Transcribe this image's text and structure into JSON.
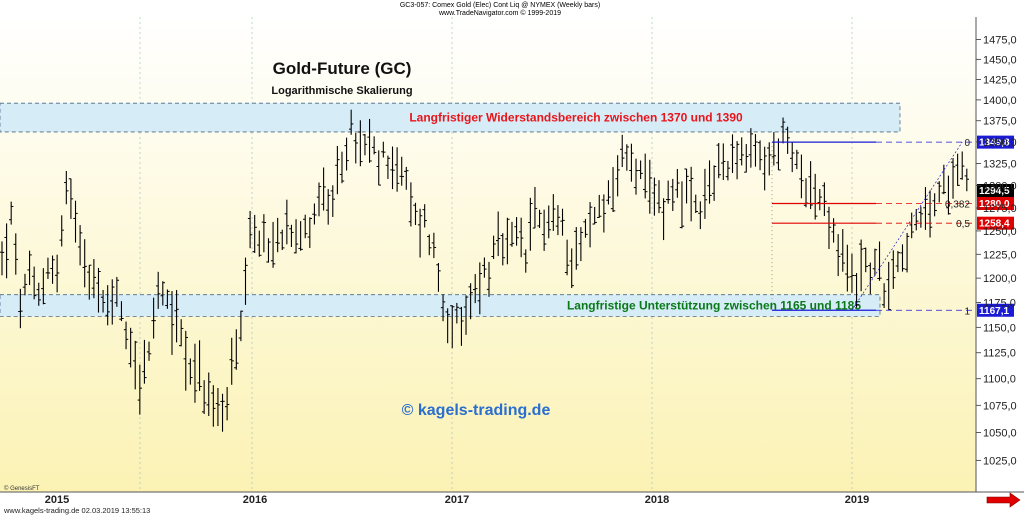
{
  "header": {
    "line1": "GC3-057: Comex Gold (Elec) Cont Liq @ NYMEX  (Weekly bars)",
    "line2": "www.TradeNavigator.com © 1999-2019"
  },
  "footer": {
    "genesis": "© GenesisFT",
    "site_date": "www.kagels-trading.de    02.03.2019 13:55:13"
  },
  "colors": {
    "background_top": "#ffffff",
    "background_bottom": "#fbf2b4",
    "bars": "#000000",
    "resistance_band": "#d6ecf7",
    "resistance_text": "#e8151b",
    "support_text": "#0a7a18",
    "watermark": "#2a6fd0",
    "fib_red": "#e00000",
    "fib_blue": "#1b1bd6",
    "arrow": "#e00000"
  },
  "chart_data": {
    "type": "ohlc",
    "title": "Gold-Future (GC)",
    "subtitle": "Logarithmische Skalierung",
    "watermark": "© kagels-trading.de",
    "y_scale": "log",
    "ylim": [
      1006,
      1495
    ],
    "y_ticks": [
      "1475,0",
      "1450,0",
      "1425,0",
      "1400,0",
      "1375,0",
      "1350,0",
      "1325,0",
      "1300,0",
      "1275,0",
      "1250,0",
      "1225,0",
      "1200,0",
      "1175,0",
      "1150,0",
      "1125,0",
      "1100,0",
      "1075,0",
      "1050,0",
      "1025,0"
    ],
    "y_tick_values": [
      1475,
      1450,
      1425,
      1400,
      1375,
      1350,
      1325,
      1300,
      1275,
      1250,
      1225,
      1200,
      1175,
      1150,
      1125,
      1100,
      1075,
      1050,
      1025
    ],
    "x_labels": [
      "2015",
      "2016",
      "2017",
      "2018",
      "2019"
    ],
    "bands": [
      {
        "low": 1370,
        "high": 1390,
        "label": "Langfristiger Widerstandsbereich zwischen 1370 und 1390"
      },
      {
        "low": 1165,
        "high": 1185,
        "label": "Langfristige Unterstützung zwischen 1165 und 1185"
      }
    ],
    "fibonacci": {
      "levels": [
        {
          "ratio": "0",
          "price": 1349.8,
          "price_label": "1349,8"
        },
        {
          "ratio": "0,382",
          "price": 1280.0,
          "price_label": "1280,0"
        },
        {
          "ratio": "0,5",
          "price": 1258.4,
          "price_label": "1258,4"
        },
        {
          "ratio": "1",
          "price": 1167.1,
          "price_label": "1167,1"
        }
      ]
    },
    "last_price": {
      "value": 1294.5,
      "label": "1294,5"
    },
    "anchor_points": [
      [
        0.0,
        1218
      ],
      [
        4,
        1260
      ],
      [
        8,
        1175
      ],
      [
        12,
        1195
      ],
      [
        16,
        1180
      ],
      [
        20,
        1215
      ],
      [
        24,
        1205
      ],
      [
        28,
        1290
      ],
      [
        32,
        1270
      ],
      [
        36,
        1225
      ],
      [
        40,
        1195
      ],
      [
        44,
        1170
      ],
      [
        48,
        1185
      ],
      [
        52,
        1170
      ],
      [
        56,
        1135
      ],
      [
        60,
        1100
      ],
      [
        64,
        1120
      ],
      [
        68,
        1185
      ],
      [
        72,
        1165
      ],
      [
        76,
        1160
      ],
      [
        80,
        1125
      ],
      [
        84,
        1110
      ],
      [
        88,
        1090
      ],
      [
        92,
        1072
      ],
      [
        96,
        1065
      ],
      [
        100,
        1105
      ],
      [
        104,
        1140
      ],
      [
        108,
        1235
      ],
      [
        112,
        1245
      ],
      [
        116,
        1230
      ],
      [
        120,
        1240
      ],
      [
        124,
        1265
      ],
      [
        128,
        1255
      ],
      [
        132,
        1245
      ],
      [
        136,
        1275
      ],
      [
        140,
        1290
      ],
      [
        144,
        1270
      ],
      [
        148,
        1330
      ],
      [
        152,
        1360
      ],
      [
        156,
        1340
      ],
      [
        160,
        1345
      ],
      [
        164,
        1325
      ],
      [
        168,
        1335
      ],
      [
        172,
        1320
      ],
      [
        176,
        1300
      ],
      [
        180,
        1260
      ],
      [
        184,
        1260
      ],
      [
        188,
        1230
      ],
      [
        192,
        1175
      ],
      [
        196,
        1160
      ],
      [
        200,
        1140
      ],
      [
        204,
        1175
      ],
      [
        208,
        1200
      ],
      [
        212,
        1210
      ],
      [
        216,
        1232
      ],
      [
        220,
        1230
      ],
      [
        224,
        1240
      ],
      [
        228,
        1225
      ],
      [
        232,
        1265
      ],
      [
        236,
        1260
      ],
      [
        240,
        1268
      ],
      [
        244,
        1250
      ],
      [
        248,
        1225
      ],
      [
        252,
        1240
      ],
      [
        256,
        1255
      ],
      [
        260,
        1275
      ],
      [
        264,
        1290
      ],
      [
        268,
        1315
      ],
      [
        272,
        1340
      ],
      [
        276,
        1320
      ],
      [
        280,
        1295
      ],
      [
        284,
        1285
      ],
      [
        288,
        1280
      ],
      [
        292,
        1300
      ],
      [
        296,
        1295
      ],
      [
        300,
        1280
      ],
      [
        304,
        1262
      ],
      [
        308,
        1300
      ],
      [
        312,
        1320
      ],
      [
        316,
        1330
      ],
      [
        320,
        1340
      ],
      [
        324,
        1325
      ],
      [
        328,
        1335
      ],
      [
        332,
        1325
      ],
      [
        336,
        1335
      ],
      [
        340,
        1355
      ],
      [
        344,
        1330
      ],
      [
        348,
        1320
      ],
      [
        352,
        1295
      ],
      [
        356,
        1285
      ],
      [
        360,
        1260
      ],
      [
        364,
        1225
      ],
      [
        368,
        1210
      ],
      [
        372,
        1200
      ],
      [
        376,
        1215
      ],
      [
        380,
        1210
      ],
      [
        384,
        1195
      ],
      [
        388,
        1215
      ],
      [
        392,
        1230
      ],
      [
        396,
        1245
      ],
      [
        400,
        1260
      ],
      [
        404,
        1275
      ],
      [
        408,
        1285
      ],
      [
        412,
        1305
      ],
      [
        416,
        1330
      ],
      [
        420,
        1315
      ]
    ],
    "weeks_count": 211,
    "x_domain": [
      0,
      424
    ]
  }
}
